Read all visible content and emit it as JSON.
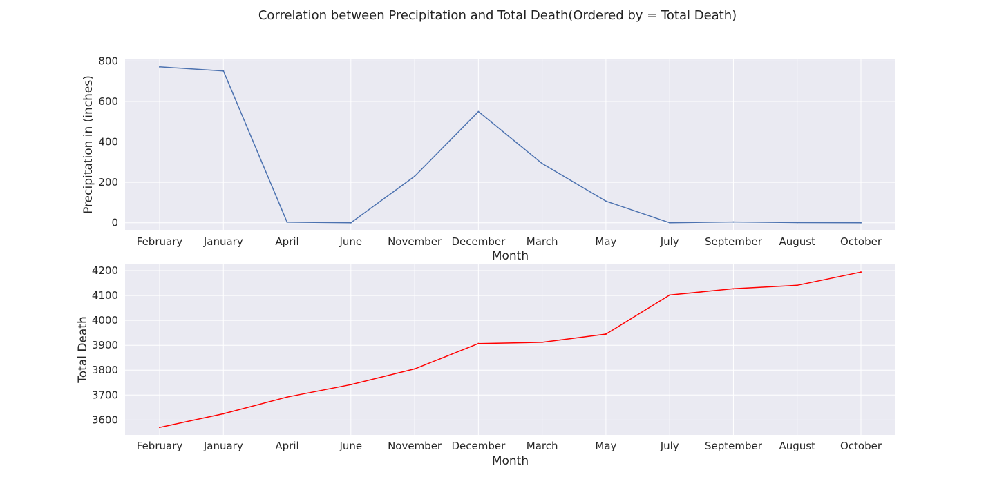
{
  "figure": {
    "title": "Correlation between Precipitation and Total Death(Ordered by = Total Death)"
  },
  "colors": {
    "plot_background": "#eaeaf2",
    "grid": "#ffffff",
    "series_top": "#4c72b0",
    "series_bottom": "#ff0000"
  },
  "chart_data": [
    {
      "type": "line",
      "title": "",
      "xlabel": "Month",
      "ylabel": "Precipitation in (inches)",
      "categories": [
        "February",
        "January",
        "April",
        "June",
        "November",
        "December",
        "March",
        "May",
        "July",
        "September",
        "August",
        "October"
      ],
      "series": [
        {
          "values": [
            771,
            751,
            3,
            0,
            230,
            550,
            293,
            107,
            0,
            4,
            1,
            0
          ]
        }
      ],
      "ylim": [
        -35,
        808
      ],
      "yticks": [
        0,
        200,
        400,
        600,
        800
      ],
      "grid": true,
      "legend": "none"
    },
    {
      "type": "line",
      "title": "",
      "xlabel": "Month",
      "ylabel": "Total Death",
      "categories": [
        "February",
        "January",
        "April",
        "June",
        "November",
        "December",
        "March",
        "May",
        "July",
        "September",
        "August",
        "October"
      ],
      "series": [
        {
          "values": [
            3570,
            3625,
            3692,
            3742,
            3805,
            3907,
            3912,
            3945,
            4102,
            4127,
            4141,
            4194
          ]
        }
      ],
      "ylim": [
        3540,
        4225
      ],
      "yticks": [
        3600,
        3700,
        3800,
        3900,
        4000,
        4100,
        4200
      ],
      "grid": true,
      "legend": "none"
    }
  ]
}
